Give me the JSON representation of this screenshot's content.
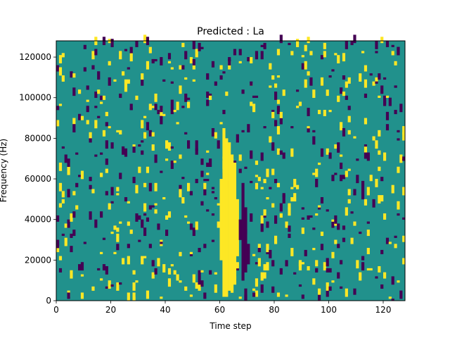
{
  "chart_data": {
    "type": "heatmap",
    "title": "Predicted : La",
    "xlabel": "Time step",
    "ylabel": "Frequency (Hz)",
    "xlim": [
      0,
      128
    ],
    "ylim": [
      0,
      128000
    ],
    "xticks": [
      0,
      20,
      40,
      60,
      80,
      100,
      120
    ],
    "yticks": [
      0,
      20000,
      40000,
      60000,
      80000,
      100000,
      120000
    ],
    "xtick_labels": [
      "0",
      "20",
      "40",
      "60",
      "80",
      "100",
      "120"
    ],
    "ytick_labels": [
      "0",
      "20000",
      "40000",
      "60000",
      "80000",
      "100000",
      "120000"
    ],
    "grid": false,
    "colormap": "viridis",
    "colors": {
      "background_value": "#21918c",
      "low_value": "#440154",
      "high_value": "#fde725"
    },
    "n_time_steps": 128,
    "n_freq_bins": 128,
    "freq_bin_hz": 1000,
    "cells_note_values": [
      "low",
      "high"
    ],
    "cells": [
      [
        61,
        2,
        85,
        "high"
      ],
      [
        62,
        2,
        80,
        "high"
      ],
      [
        63,
        5,
        78,
        "high"
      ],
      [
        64,
        4,
        72,
        "high"
      ],
      [
        65,
        8,
        68,
        "high"
      ],
      [
        60,
        20,
        60,
        "high"
      ],
      [
        66,
        22,
        50,
        "high"
      ],
      [
        68,
        10,
        58,
        "low"
      ],
      [
        69,
        14,
        46,
        "low"
      ],
      [
        67,
        30,
        40,
        "low"
      ],
      [
        70,
        18,
        28,
        "low"
      ],
      [
        69,
        0,
        6,
        "low"
      ],
      [
        72,
        2,
        4,
        "low"
      ],
      [
        0,
        0,
        0,
        "low"
      ]
    ]
  }
}
